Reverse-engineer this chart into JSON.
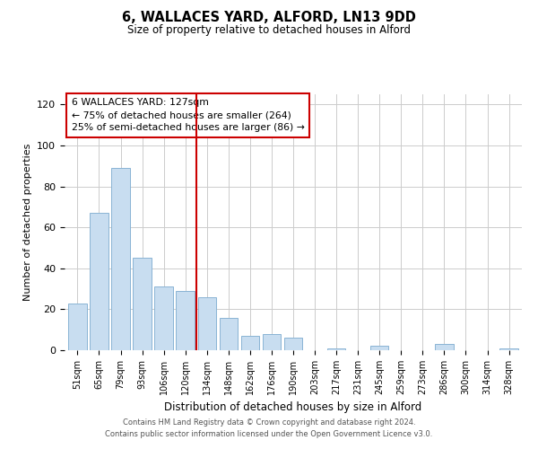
{
  "title": "6, WALLACES YARD, ALFORD, LN13 9DD",
  "subtitle": "Size of property relative to detached houses in Alford",
  "xlabel": "Distribution of detached houses by size in Alford",
  "ylabel": "Number of detached properties",
  "categories": [
    "51sqm",
    "65sqm",
    "79sqm",
    "93sqm",
    "106sqm",
    "120sqm",
    "134sqm",
    "148sqm",
    "162sqm",
    "176sqm",
    "190sqm",
    "203sqm",
    "217sqm",
    "231sqm",
    "245sqm",
    "259sqm",
    "273sqm",
    "286sqm",
    "300sqm",
    "314sqm",
    "328sqm"
  ],
  "values": [
    23,
    67,
    89,
    45,
    31,
    29,
    26,
    16,
    7,
    8,
    6,
    0,
    1,
    0,
    2,
    0,
    0,
    3,
    0,
    0,
    1
  ],
  "bar_color": "#c8ddf0",
  "bar_edge_color": "#8ab4d4",
  "marker_line_color": "#cc0000",
  "annotation_line1": "6 WALLACES YARD: 127sqm",
  "annotation_line2": "← 75% of detached houses are smaller (264)",
  "annotation_line3": "25% of semi-detached houses are larger (86) →",
  "annotation_box_color": "#cc0000",
  "ylim": [
    0,
    125
  ],
  "yticks": [
    0,
    20,
    40,
    60,
    80,
    100,
    120
  ],
  "footer_line1": "Contains HM Land Registry data © Crown copyright and database right 2024.",
  "footer_line2": "Contains public sector information licensed under the Open Government Licence v3.0.",
  "background_color": "#ffffff",
  "grid_color": "#cccccc"
}
